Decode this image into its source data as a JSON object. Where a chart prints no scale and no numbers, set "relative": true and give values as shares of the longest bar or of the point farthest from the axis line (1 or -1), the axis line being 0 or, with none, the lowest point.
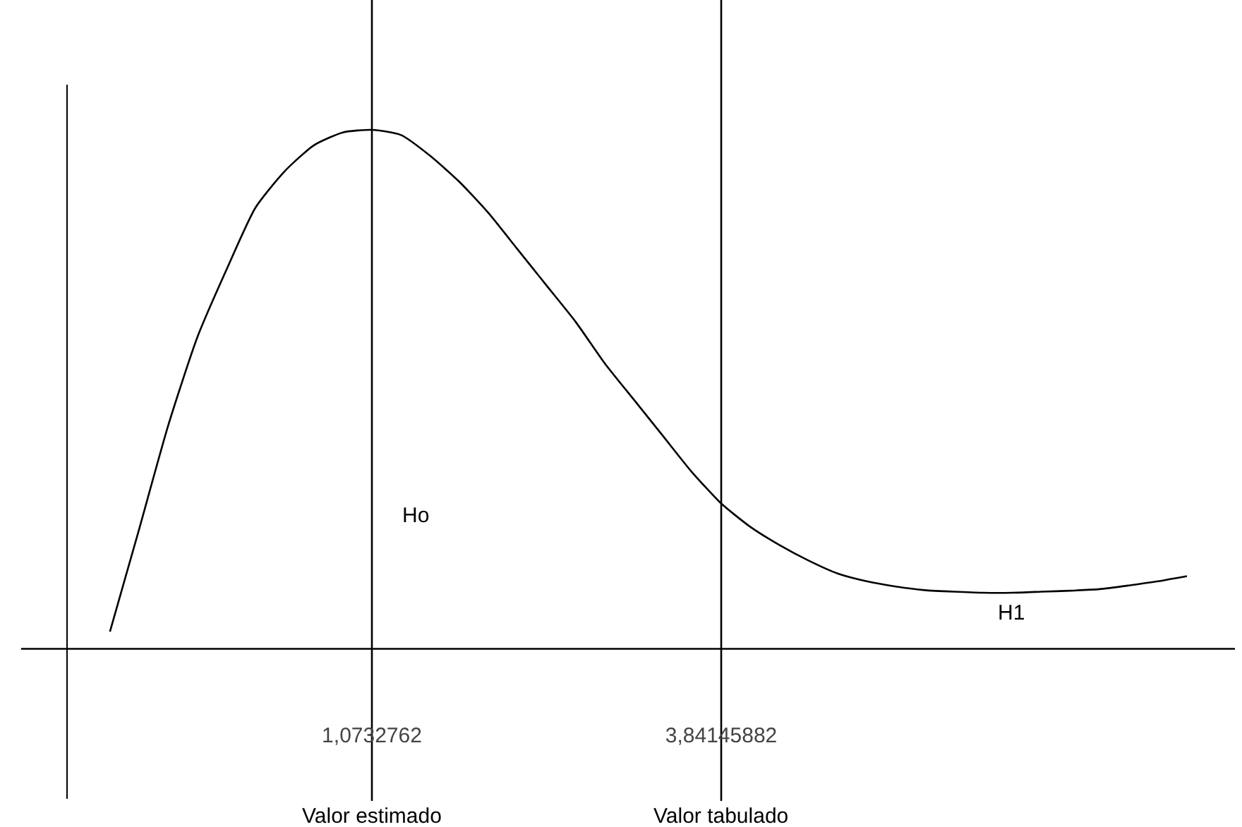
{
  "chart_data": {
    "type": "line",
    "relative": true,
    "categories": [
      null,
      null,
      null,
      null,
      null,
      null,
      null,
      null,
      null,
      "1,0732762",
      null,
      null,
      null,
      null,
      null,
      null,
      null,
      null,
      null,
      null,
      null,
      "3,84145882",
      null,
      null,
      null,
      null,
      null,
      null,
      null,
      null,
      null,
      null,
      null,
      null,
      null,
      null,
      null,
      null
    ],
    "series": [
      {
        "color": "#000000",
        "values": [
          0.033,
          0.23,
          0.43,
          0.6,
          0.73,
          0.85,
          0.92,
          0.97,
          0.995,
          1.0,
          0.99,
          0.95,
          0.9,
          0.84,
          0.77,
          0.7,
          0.63,
          0.55,
          0.48,
          0.41,
          0.34,
          0.28,
          0.235,
          0.2,
          0.17,
          0.145,
          0.13,
          0.12,
          0.113,
          0.11,
          0.108,
          0.108,
          0.11,
          0.112,
          0.115,
          0.122,
          0.13,
          0.14
        ]
      }
    ],
    "ref_lines": [
      {
        "axis": "x",
        "value": "1,0732762",
        "label": "Valor estimado",
        "color": "#000000"
      },
      {
        "axis": "x",
        "value": "3,84145882",
        "label": "Valor tabulado",
        "color": "#000000"
      }
    ],
    "annotations": [
      "Ho",
      "H1"
    ],
    "marker": "none",
    "line_style": "solid"
  }
}
